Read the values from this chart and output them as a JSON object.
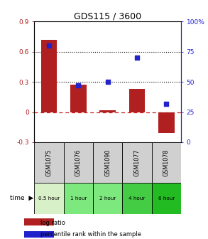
{
  "title": "GDS115 / 3600",
  "samples": [
    "GSM1075",
    "GSM1076",
    "GSM1090",
    "GSM1077",
    "GSM1078"
  ],
  "time_labels": [
    "0.5 hour",
    "1 hour",
    "2 hour",
    "4 hour",
    "6 hour"
  ],
  "time_colors": [
    "#d8f0c8",
    "#7de87d",
    "#7de87d",
    "#44cc44",
    "#22bb22"
  ],
  "log_ratio": [
    0.72,
    0.27,
    0.02,
    0.23,
    -0.21
  ],
  "percentile": [
    80,
    47,
    50,
    70,
    32
  ],
  "bar_color": "#b02020",
  "dot_color": "#2222cc",
  "ylim_left": [
    -0.3,
    0.9
  ],
  "ylim_right": [
    0,
    100
  ],
  "yticks_left": [
    -0.3,
    0.0,
    0.3,
    0.6,
    0.9
  ],
  "yticks_right": [
    0,
    25,
    50,
    75,
    100
  ],
  "hline_values": [
    0.3,
    0.6
  ],
  "zero_line_color": "#cc2222",
  "background_color": "#ffffff"
}
